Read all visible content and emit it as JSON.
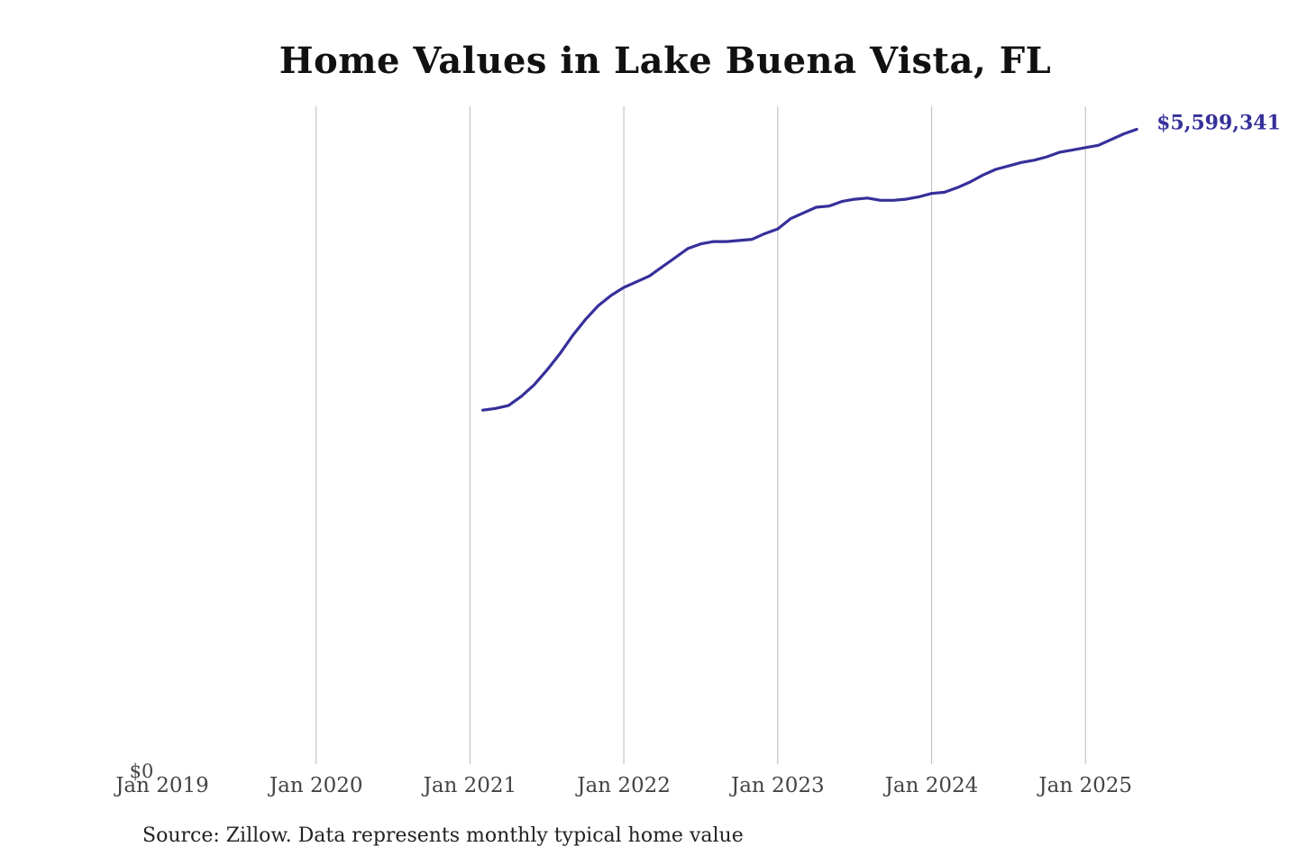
{
  "chart_data": {
    "type": "line",
    "title": "Home Values in Lake Buena Vista, FL",
    "xlabel": "",
    "ylabel": "",
    "x_ticks": [
      "Jan 2019",
      "Jan 2020",
      "Jan 2021",
      "Jan 2022",
      "Jan 2023",
      "Jan 2024",
      "Jan 2025"
    ],
    "y_tick_label": "$0",
    "ylim": [
      0,
      5800000
    ],
    "xlim": [
      "2019-01",
      "2025-06"
    ],
    "grid": "vertical",
    "legend": "none",
    "line_color": "#35309a",
    "end_label": "$5,599,341",
    "series": [
      {
        "x": [
          "2021-02",
          "2021-03",
          "2021-04",
          "2021-05",
          "2021-06",
          "2021-07",
          "2021-08",
          "2021-09",
          "2021-10",
          "2021-11",
          "2021-12",
          "2022-01",
          "2022-02",
          "2022-03",
          "2022-04",
          "2022-05",
          "2022-06",
          "2022-07",
          "2022-08",
          "2022-09",
          "2022-10",
          "2022-11",
          "2022-12",
          "2023-01",
          "2023-02",
          "2023-03",
          "2023-04",
          "2023-05",
          "2023-06",
          "2023-07",
          "2023-08",
          "2023-09",
          "2023-10",
          "2023-11",
          "2023-12",
          "2024-01",
          "2024-02",
          "2024-03",
          "2024-04",
          "2024-05",
          "2024-06",
          "2024-07",
          "2024-08",
          "2024-09",
          "2024-10",
          "2024-11",
          "2024-12",
          "2025-01",
          "2025-02",
          "2025-03",
          "2025-04",
          "2025-05"
        ],
        "values": [
          3150000,
          3165000,
          3190000,
          3270000,
          3370000,
          3500000,
          3640000,
          3800000,
          3940000,
          4060000,
          4150000,
          4220000,
          4270000,
          4320000,
          4400000,
          4480000,
          4560000,
          4600000,
          4620000,
          4620000,
          4630000,
          4640000,
          4690000,
          4730000,
          4820000,
          4870000,
          4920000,
          4930000,
          4970000,
          4990000,
          5000000,
          4980000,
          4980000,
          4990000,
          5010000,
          5040000,
          5050000,
          5090000,
          5140000,
          5200000,
          5250000,
          5280000,
          5310000,
          5330000,
          5360000,
          5400000,
          5420000,
          5440000,
          5460000,
          5510000,
          5560000,
          5599341
        ]
      }
    ]
  },
  "footer": {
    "source": "Source: Zillow. Data represents monthly typical home value"
  }
}
